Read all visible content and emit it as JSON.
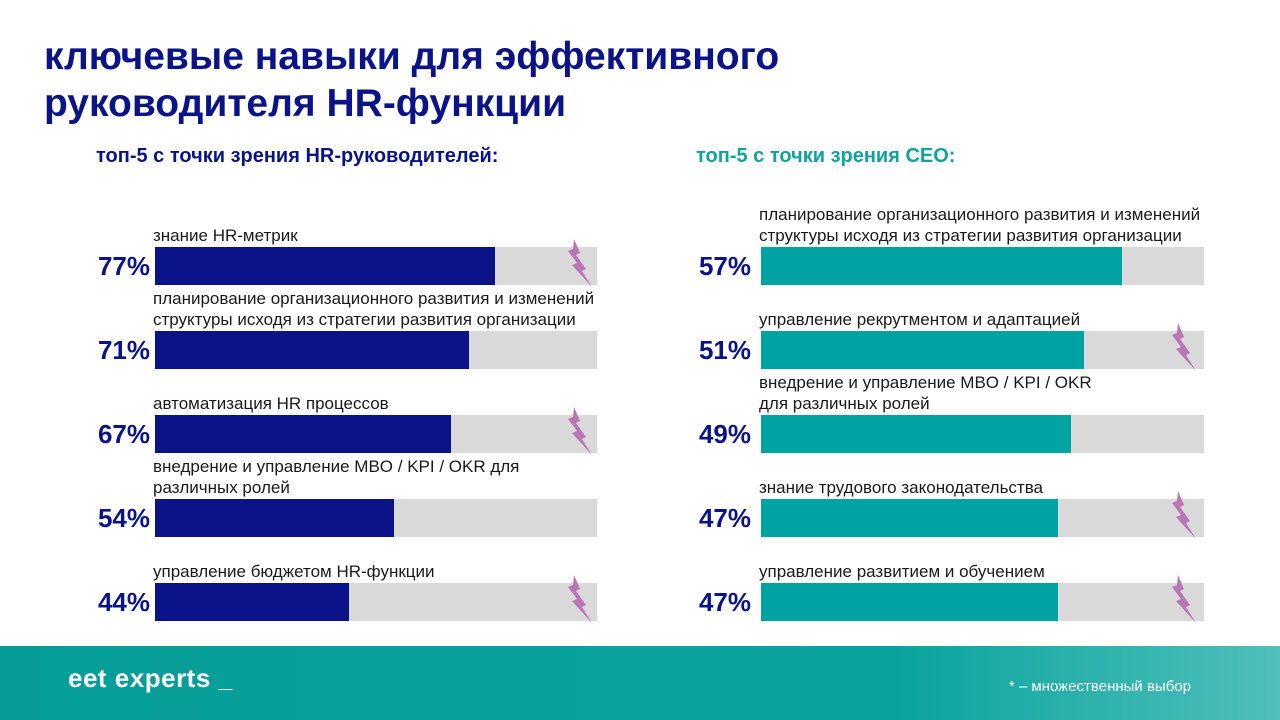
{
  "title": [
    "ключевые навыки для эффективного",
    "руководителя HR-функции"
  ],
  "colors": {
    "navy": "#0a1488",
    "teal": "#00a3a1",
    "track": "#d9d9d9",
    "bolt": "#b975b5"
  },
  "chart_data": [
    {
      "type": "bar",
      "title": "топ-5 с точки зрения HR-руководителей:",
      "unit": "%",
      "xlim": [
        0,
        100
      ],
      "categories": [
        "знание HR-метрик",
        "планирование организационного развития и изменений структуры исходя из стратегии развития организации",
        "автоматизация HR процессов",
        "внедрение и управление MBO / KPI / OKR для различных ролей",
        "управление бюджетом HR-функции"
      ],
      "label_lines": [
        [
          "знание HR-метрик"
        ],
        [
          "планирование организационного развития и изменений",
          "структуры исходя из стратегии развития организации"
        ],
        [
          "автоматизация HR процессов"
        ],
        [
          "внедрение и управление MBO / KPI / OKR для",
          "различных ролей"
        ],
        [
          "управление бюджетом HR-функции"
        ]
      ],
      "values": [
        77,
        71,
        67,
        54,
        44
      ],
      "value_labels": [
        "77%",
        "71%",
        "67%",
        "54%",
        "44%"
      ],
      "marked": [
        true,
        false,
        true,
        false,
        true
      ],
      "bar_color": "#0a1488"
    },
    {
      "type": "bar",
      "title": "топ-5 с точки зрения CEO:",
      "unit": "%",
      "xlim": [
        0,
        70
      ],
      "categories": [
        "планирование организационного развития и изменений структуры исходя из стратегии развития организации",
        "управление рекрутментом и адаптацией",
        "внедрение и управление MBO / KPI / OKR для различных ролей",
        "знание трудового законодательства",
        "управление развитием и обучением"
      ],
      "label_lines": [
        [
          "планирование организационного развития и изменений",
          "структуры исходя из стратегии развития организации"
        ],
        [
          "управление рекрутментом и адаптацией"
        ],
        [
          "внедрение и управление MBO / KPI / OKR",
          "для различных ролей"
        ],
        [
          "знание трудового законодательства"
        ],
        [
          "управление развитием и обучением"
        ]
      ],
      "values": [
        57,
        51,
        49,
        47,
        47
      ],
      "value_labels": [
        "57%",
        "51%",
        "49%",
        "47%",
        "47%"
      ],
      "marked": [
        false,
        true,
        false,
        true,
        true
      ],
      "bar_color": "#00a3a1"
    }
  ],
  "footer": {
    "logo": "eet experts _",
    "note": "* – множественный выбор"
  }
}
